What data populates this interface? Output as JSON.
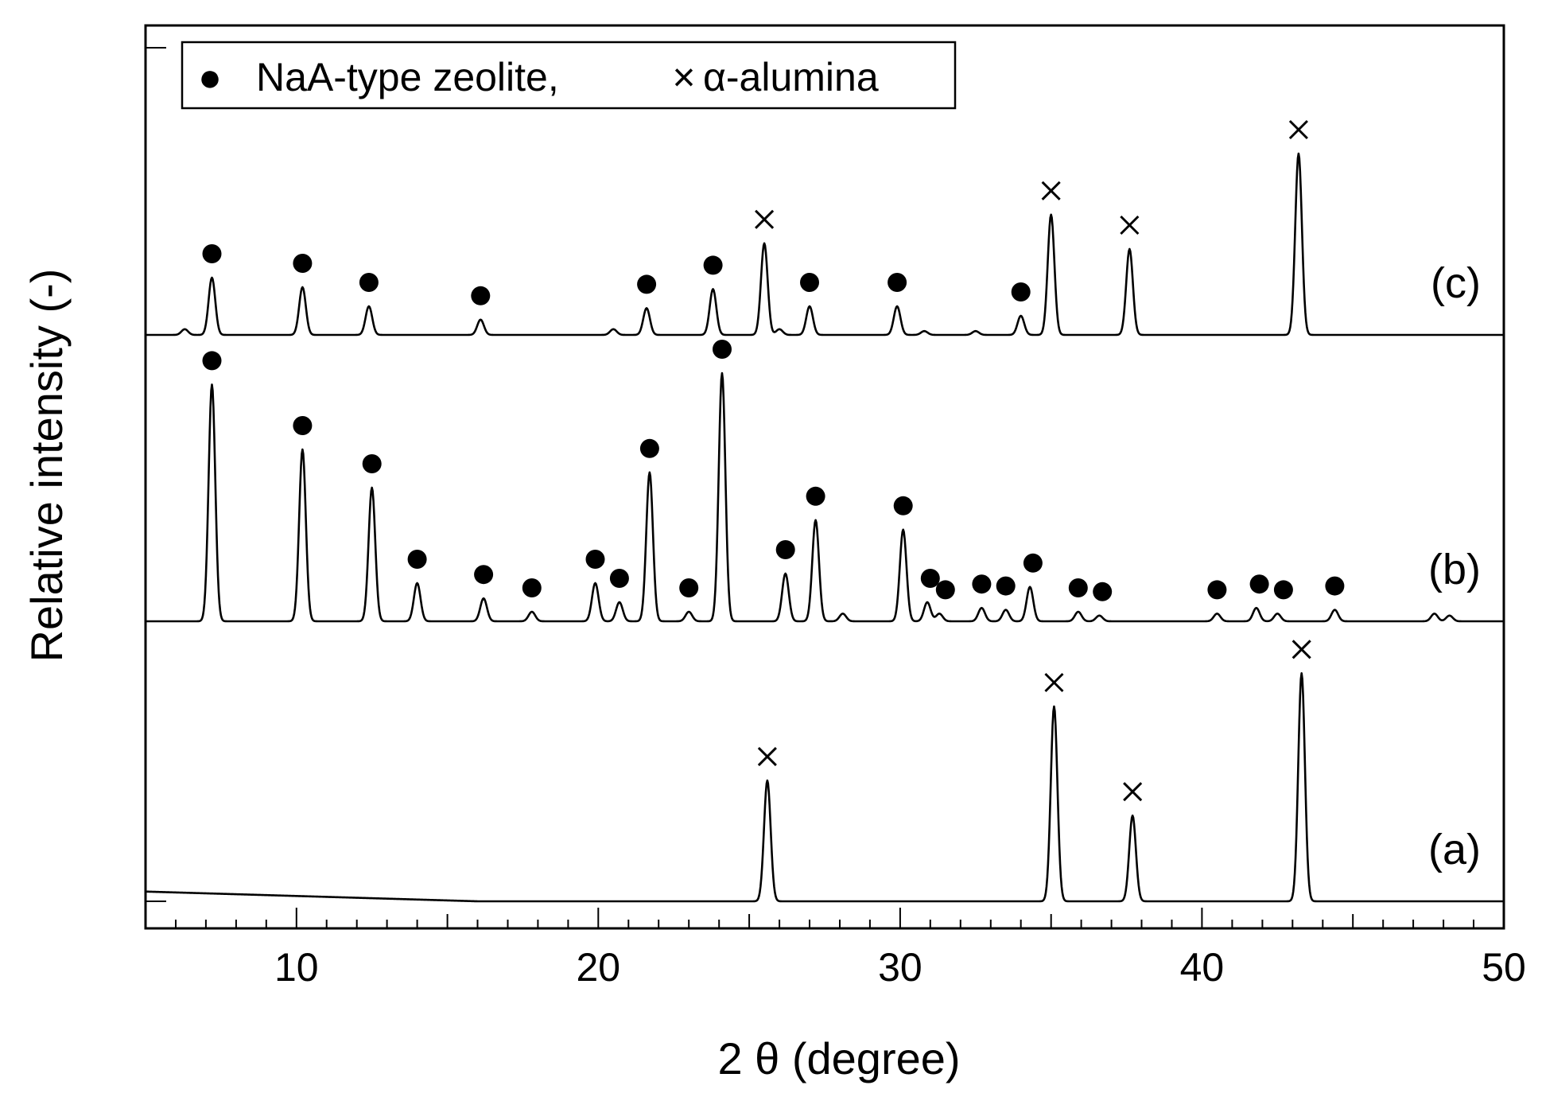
{
  "chart_data": {
    "type": "line",
    "xlabel": "2 θ (degree)",
    "ylabel": "Relative intensity (-)",
    "xlim": [
      5,
      50
    ],
    "x_ticks": [
      10,
      20,
      30,
      40,
      50
    ],
    "legend": {
      "placement": "top-left",
      "zeolite_symbol": "●",
      "zeolite_label": "NaA-type zeolite,",
      "alumina_symbol": "×",
      "alumina_label": "α-alumina"
    },
    "series": [
      {
        "name": "(a)",
        "baseline": 0.0,
        "peaks": [
          [
            25.6,
            0.62
          ],
          [
            35.1,
            1.0
          ],
          [
            37.7,
            0.44
          ],
          [
            43.3,
            1.17
          ]
        ],
        "zeolite_markers": [],
        "alumina_markers": [
          25.6,
          35.1,
          37.7,
          43.3
        ]
      },
      {
        "name": "(b)",
        "baseline": 1.0,
        "peaks": [
          [
            7.2,
            1.24
          ],
          [
            10.2,
            0.9
          ],
          [
            12.5,
            0.7
          ],
          [
            14.0,
            0.2
          ],
          [
            16.2,
            0.12
          ],
          [
            17.8,
            0.05
          ],
          [
            19.9,
            0.2
          ],
          [
            20.7,
            0.1
          ],
          [
            21.7,
            0.78
          ],
          [
            23.0,
            0.05
          ],
          [
            24.1,
            1.3
          ],
          [
            26.2,
            0.25
          ],
          [
            27.2,
            0.53
          ],
          [
            28.1,
            0.04
          ],
          [
            30.1,
            0.48
          ],
          [
            30.9,
            0.1
          ],
          [
            31.3,
            0.04
          ],
          [
            32.7,
            0.07
          ],
          [
            33.5,
            0.06
          ],
          [
            34.3,
            0.18
          ],
          [
            35.9,
            0.05
          ],
          [
            36.6,
            0.03
          ],
          [
            40.5,
            0.04
          ],
          [
            41.8,
            0.07
          ],
          [
            42.5,
            0.04
          ],
          [
            44.4,
            0.06
          ],
          [
            47.7,
            0.04
          ],
          [
            48.2,
            0.03
          ]
        ],
        "zeolite_markers": [
          7.2,
          10.2,
          12.5,
          14.0,
          16.2,
          17.8,
          19.9,
          20.7,
          21.7,
          23.0,
          24.1,
          26.2,
          27.2,
          30.1,
          31.0,
          31.5,
          32.7,
          33.5,
          34.4,
          35.9,
          36.7,
          40.5,
          41.9,
          42.7,
          44.4
        ],
        "alumina_markers": []
      },
      {
        "name": "(c)",
        "baseline": 2.0,
        "peaks": [
          [
            6.3,
            0.03
          ],
          [
            7.2,
            0.3
          ],
          [
            10.2,
            0.25
          ],
          [
            12.4,
            0.15
          ],
          [
            16.1,
            0.08
          ],
          [
            20.5,
            0.03
          ],
          [
            21.6,
            0.14
          ],
          [
            23.8,
            0.24
          ],
          [
            25.5,
            0.48
          ],
          [
            26.0,
            0.03
          ],
          [
            27.0,
            0.15
          ],
          [
            29.9,
            0.15
          ],
          [
            30.8,
            0.02
          ],
          [
            32.5,
            0.02
          ],
          [
            34.0,
            0.1
          ],
          [
            35.0,
            0.63
          ],
          [
            37.6,
            0.45
          ],
          [
            43.2,
            0.95
          ]
        ],
        "zeolite_markers": [
          7.2,
          10.2,
          12.4,
          16.1,
          21.6,
          23.8,
          27.0,
          29.9,
          34.0
        ],
        "alumina_markers": [
          25.5,
          35.0,
          37.6,
          43.2
        ]
      }
    ]
  }
}
